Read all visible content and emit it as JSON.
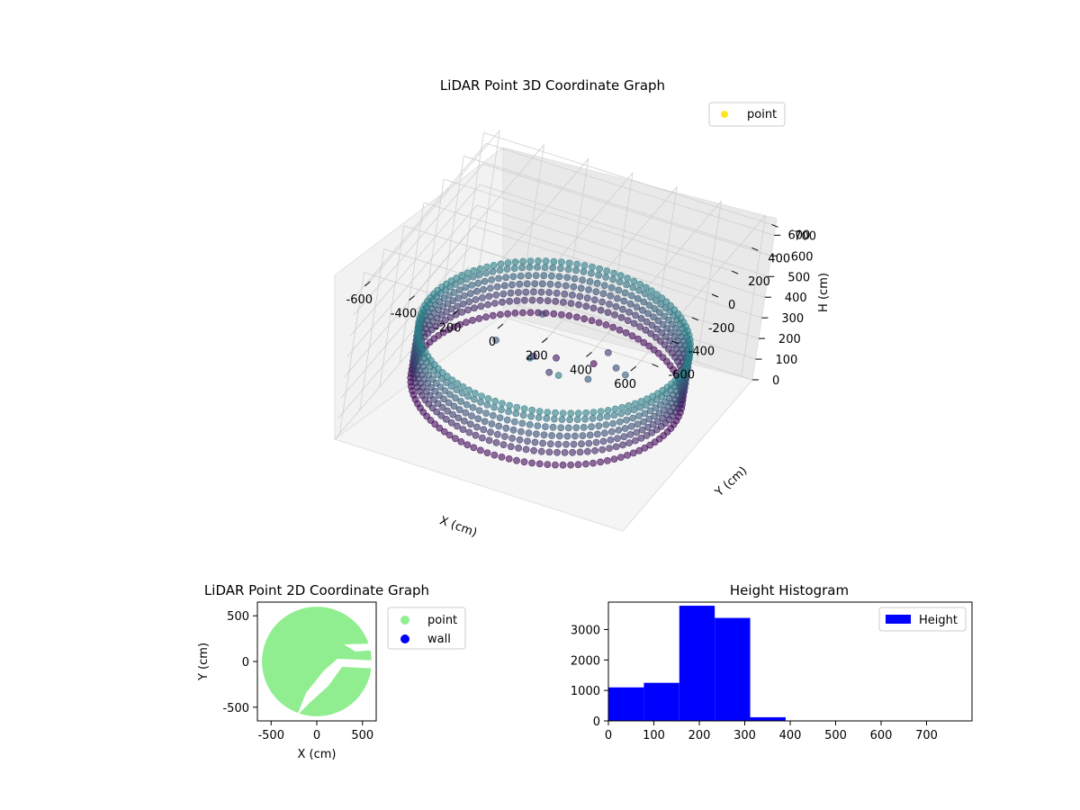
{
  "chart_data": [
    {
      "type": "scatter3d",
      "title": "LiDAR Point 3D Coordinate Graph",
      "xlabel": "X (cm)",
      "ylabel": "Y (cm)",
      "zlabel": "H (cm)",
      "xlim": [
        -650,
        650
      ],
      "ylim": [
        -650,
        650
      ],
      "zlim": [
        0,
        780
      ],
      "z_inverted": true,
      "xticks": [
        -600,
        -400,
        -200,
        0,
        200,
        400,
        600
      ],
      "yticks": [
        -600,
        -400,
        -200,
        0,
        200,
        400,
        600
      ],
      "zticks": [
        0,
        100,
        200,
        300,
        400,
        500,
        600,
        700
      ],
      "legend": {
        "position": "top-right",
        "entries": [
          {
            "label": "point",
            "color": "#fde725"
          }
        ]
      },
      "wall": {
        "radius": 560,
        "heights": [
          100,
          160,
          200,
          240,
          280,
          320,
          350
        ]
      },
      "inner_points": [
        {
          "x": -120,
          "y": 120,
          "h": 150
        },
        {
          "x": -50,
          "y": 200,
          "h": 120
        },
        {
          "x": 80,
          "y": 300,
          "h": 80
        },
        {
          "x": 160,
          "y": 230,
          "h": 200
        },
        {
          "x": 250,
          "y": 100,
          "h": 230
        },
        {
          "x": -250,
          "y": 0,
          "h": 250
        },
        {
          "x": -50,
          "y": -120,
          "h": 300
        },
        {
          "x": 120,
          "y": -220,
          "h": 330
        },
        {
          "x": -180,
          "y": 320,
          "h": 220
        },
        {
          "x": 330,
          "y": 0,
          "h": 280
        },
        {
          "x": 0,
          "y": 0,
          "h": 180
        },
        {
          "x": 200,
          "y": -80,
          "h": 260
        }
      ],
      "grid": true
    },
    {
      "type": "scatter",
      "title": "LiDAR Point 2D Coordinate Graph",
      "xlabel": "X (cm)",
      "ylabel": "Y (cm)",
      "xlim": [
        -650,
        650
      ],
      "ylim": [
        -650,
        650
      ],
      "xticks": [
        -500,
        0,
        500
      ],
      "yticks": [
        -500,
        0,
        500
      ],
      "series": [
        {
          "name": "point",
          "color": "#90ee90",
          "shape": "disc",
          "radius": 600
        },
        {
          "name": "wall",
          "color": "#0000ff"
        }
      ],
      "legend": {
        "position": "outside-right"
      }
    },
    {
      "type": "bar",
      "title": "Height Histogram",
      "xlim": [
        0,
        800
      ],
      "ylim": [
        0,
        3900
      ],
      "xticks": [
        0,
        100,
        200,
        300,
        400,
        500,
        600,
        700
      ],
      "yticks": [
        0,
        1000,
        2000,
        3000
      ],
      "color": "#0000ff",
      "bins": [
        {
          "x0": 0,
          "x1": 78,
          "value": 1100
        },
        {
          "x0": 78,
          "x1": 156,
          "value": 1250
        },
        {
          "x0": 156,
          "x1": 234,
          "value": 3780
        },
        {
          "x0": 234,
          "x1": 312,
          "value": 3380
        },
        {
          "x0": 312,
          "x1": 390,
          "value": 120
        },
        {
          "x0": 390,
          "x1": 468,
          "value": 0
        },
        {
          "x0": 468,
          "x1": 546,
          "value": 0
        },
        {
          "x0": 546,
          "x1": 624,
          "value": 0
        },
        {
          "x0": 624,
          "x1": 702,
          "value": 0
        },
        {
          "x0": 702,
          "x1": 780,
          "value": 0
        }
      ],
      "legend": {
        "position": "top-right",
        "entries": [
          {
            "label": "Height",
            "color": "#0000ff"
          }
        ]
      }
    }
  ]
}
